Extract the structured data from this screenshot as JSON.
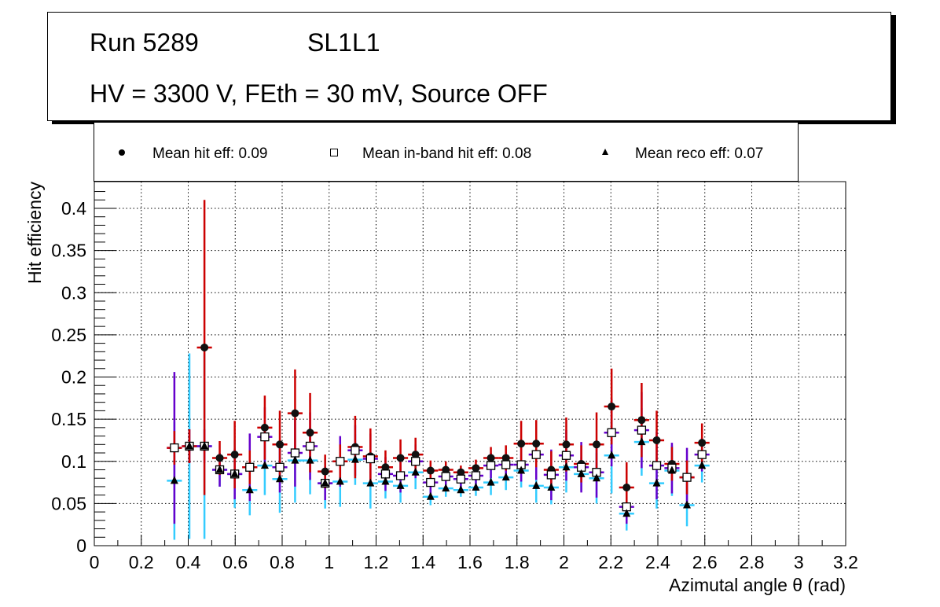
{
  "title": {
    "run": "Run 5289",
    "layer": "SL1L1",
    "conditions": "HV = 3300 V, FEth = 30 mV, Source OFF"
  },
  "chart_data": {
    "type": "scatter",
    "xlabel": "Azimutal angle θ (rad)",
    "ylabel": "Hit efficiency",
    "xlim": [
      0,
      3.2
    ],
    "ylim": [
      0,
      0.43
    ],
    "grid": true,
    "legend_placement": "top",
    "xticks": [
      "0",
      "0.2",
      "0.4",
      "0.6",
      "0.8",
      "1",
      "1.2",
      "1.4",
      "1.6",
      "1.8",
      "2",
      "2.2",
      "2.4",
      "2.6",
      "2.8",
      "3",
      "3.2"
    ],
    "yticks": [
      "0",
      "0.05",
      "0.1",
      "0.15",
      "0.2",
      "0.25",
      "0.3",
      "0.35",
      "0.4"
    ],
    "bin_halfwidth": 0.032,
    "x": [
      0.341,
      0.405,
      0.469,
      0.534,
      0.598,
      0.662,
      0.726,
      0.79,
      0.855,
      0.919,
      0.983,
      1.047,
      1.111,
      1.176,
      1.24,
      1.304,
      1.368,
      1.432,
      1.497,
      1.561,
      1.625,
      1.689,
      1.753,
      1.818,
      1.882,
      1.946,
      2.01,
      2.074,
      2.139,
      2.203,
      2.267,
      2.331,
      2.395,
      2.46,
      2.524,
      2.588
    ],
    "series": [
      {
        "name": "Mean hit  eff: 0.09",
        "marker": "circle",
        "color": "#cc0000",
        "values": [
          0.116,
          0.118,
          0.235,
          0.104,
          0.108,
          0.093,
          0.14,
          0.12,
          0.157,
          0.134,
          0.088,
          0.1,
          0.117,
          0.106,
          0.093,
          0.104,
          0.108,
          0.089,
          0.09,
          0.087,
          0.092,
          0.104,
          0.104,
          0.121,
          0.121,
          0.09,
          0.12,
          0.097,
          0.12,
          0.165,
          0.069,
          0.149,
          0.125,
          0.097,
          0.081,
          0.122
        ],
        "errors": [
          0.02,
          0.02,
          0.175,
          0.02,
          0.04,
          0.02,
          0.038,
          0.04,
          0.052,
          0.047,
          0.02,
          0.02,
          0.037,
          0.033,
          0.02,
          0.022,
          0.02,
          0.012,
          0.01,
          0.008,
          0.01,
          0.013,
          0.015,
          0.027,
          0.028,
          0.022,
          0.032,
          0.022,
          0.038,
          0.045,
          0.03,
          0.044,
          0.035,
          0.02,
          0.02,
          0.023
        ]
      },
      {
        "name": "Mean in-band hit eff: 0.08",
        "marker": "open-square",
        "color": "#6600cc",
        "values": [
          0.116,
          0.118,
          0.118,
          0.09,
          0.085,
          0.093,
          0.129,
          0.093,
          0.11,
          0.118,
          0.074,
          0.1,
          0.113,
          0.103,
          0.085,
          0.083,
          0.1,
          0.075,
          0.082,
          0.079,
          0.083,
          0.095,
          0.096,
          0.096,
          0.108,
          0.084,
          0.107,
          0.093,
          0.087,
          0.134,
          0.046,
          0.137,
          0.095,
          0.092,
          0.081,
          0.108
        ],
        "errors": [
          0.09,
          0.02,
          0.02,
          0.02,
          0.03,
          0.04,
          0.035,
          0.03,
          0.04,
          0.04,
          0.02,
          0.03,
          0.03,
          0.03,
          0.02,
          0.02,
          0.02,
          0.015,
          0.01,
          0.01,
          0.01,
          0.015,
          0.015,
          0.02,
          0.03,
          0.03,
          0.03,
          0.03,
          0.03,
          0.04,
          0.02,
          0.045,
          0.04,
          0.03,
          0.035,
          0.02
        ]
      },
      {
        "name": "Mean reco eff: 0.07",
        "marker": "triangle",
        "color": "#33ccff",
        "values": [
          0.077,
          0.118,
          0.118,
          0.09,
          0.085,
          0.066,
          0.095,
          0.079,
          0.101,
          0.101,
          0.074,
          0.076,
          0.102,
          0.074,
          0.076,
          0.071,
          0.087,
          0.058,
          0.068,
          0.066,
          0.069,
          0.075,
          0.081,
          0.089,
          0.071,
          0.069,
          0.093,
          0.085,
          0.08,
          0.107,
          0.038,
          0.123,
          0.074,
          0.089,
          0.048,
          0.095
        ],
        "errors": [
          0.07,
          0.11,
          0.11,
          0.02,
          0.04,
          0.03,
          0.035,
          0.04,
          0.05,
          0.04,
          0.03,
          0.03,
          0.03,
          0.03,
          0.02,
          0.02,
          0.02,
          0.01,
          0.01,
          0.008,
          0.01,
          0.015,
          0.015,
          0.02,
          0.02,
          0.02,
          0.03,
          0.02,
          0.03,
          0.045,
          0.02,
          0.04,
          0.03,
          0.03,
          0.025,
          0.02
        ]
      }
    ]
  }
}
